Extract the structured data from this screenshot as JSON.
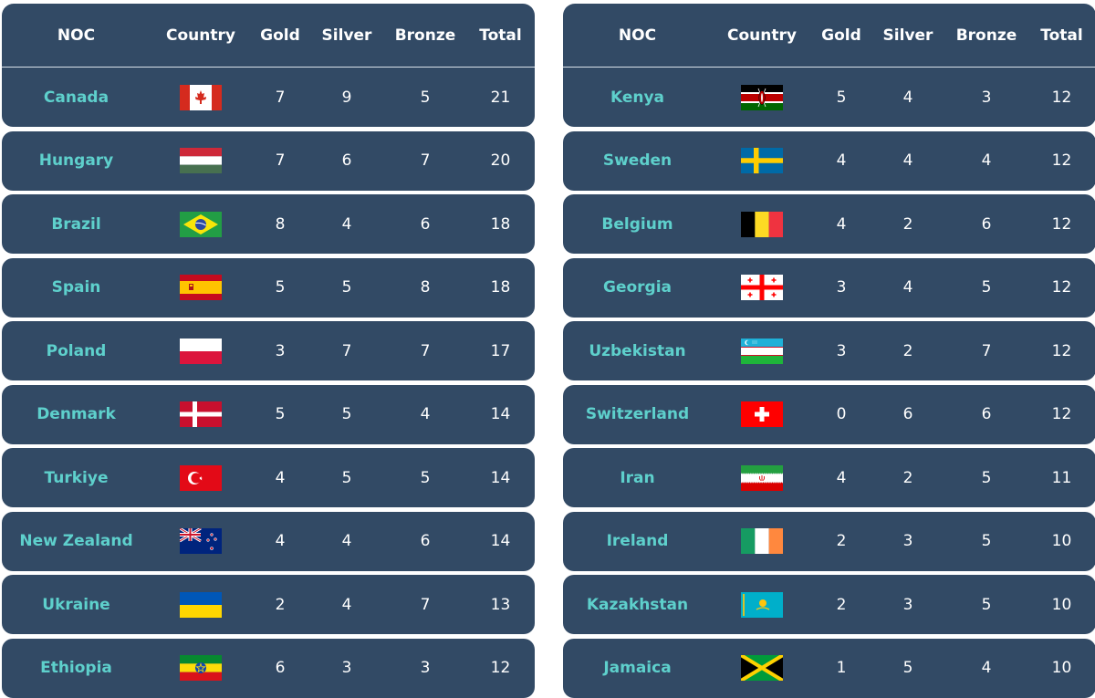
{
  "headers": {
    "noc": "NOC",
    "country": "Country",
    "gold": "Gold",
    "silver": "Silver",
    "bronze": "Bronze",
    "total": "Total"
  },
  "colors": {
    "row_bg": "#324a65",
    "noc_text": "#5ed0cc",
    "text": "#ffffff"
  },
  "left_table": [
    {
      "noc": "Canada",
      "flag": "canada-flag",
      "gold": "7",
      "silver": "9",
      "bronze": "5",
      "total": "21"
    },
    {
      "noc": "Hungary",
      "flag": "hungary-flag",
      "gold": "7",
      "silver": "6",
      "bronze": "7",
      "total": "20"
    },
    {
      "noc": "Brazil",
      "flag": "brazil-flag",
      "gold": "8",
      "silver": "4",
      "bronze": "6",
      "total": "18"
    },
    {
      "noc": "Spain",
      "flag": "spain-flag",
      "gold": "5",
      "silver": "5",
      "bronze": "8",
      "total": "18"
    },
    {
      "noc": "Poland",
      "flag": "poland-flag",
      "gold": "3",
      "silver": "7",
      "bronze": "7",
      "total": "17"
    },
    {
      "noc": "Denmark",
      "flag": "denmark-flag",
      "gold": "5",
      "silver": "5",
      "bronze": "4",
      "total": "14"
    },
    {
      "noc": "Turkiye",
      "flag": "turkiye-flag",
      "gold": "4",
      "silver": "5",
      "bronze": "5",
      "total": "14"
    },
    {
      "noc": "New Zealand",
      "flag": "new-zealand-flag",
      "gold": "4",
      "silver": "4",
      "bronze": "6",
      "total": "14"
    },
    {
      "noc": "Ukraine",
      "flag": "ukraine-flag",
      "gold": "2",
      "silver": "4",
      "bronze": "7",
      "total": "13"
    },
    {
      "noc": "Ethiopia",
      "flag": "ethiopia-flag",
      "gold": "6",
      "silver": "3",
      "bronze": "3",
      "total": "12"
    }
  ],
  "right_table": [
    {
      "noc": "Kenya",
      "flag": "kenya-flag",
      "gold": "5",
      "silver": "4",
      "bronze": "3",
      "total": "12"
    },
    {
      "noc": "Sweden",
      "flag": "sweden-flag",
      "gold": "4",
      "silver": "4",
      "bronze": "4",
      "total": "12"
    },
    {
      "noc": "Belgium",
      "flag": "belgium-flag",
      "gold": "4",
      "silver": "2",
      "bronze": "6",
      "total": "12"
    },
    {
      "noc": "Georgia",
      "flag": "georgia-flag",
      "gold": "3",
      "silver": "4",
      "bronze": "5",
      "total": "12"
    },
    {
      "noc": "Uzbekistan",
      "flag": "uzbekistan-flag",
      "gold": "3",
      "silver": "2",
      "bronze": "7",
      "total": "12"
    },
    {
      "noc": "Switzerland",
      "flag": "switzerland-flag",
      "gold": "0",
      "silver": "6",
      "bronze": "6",
      "total": "12"
    },
    {
      "noc": "Iran",
      "flag": "iran-flag",
      "gold": "4",
      "silver": "2",
      "bronze": "5",
      "total": "11"
    },
    {
      "noc": "Ireland",
      "flag": "ireland-flag",
      "gold": "2",
      "silver": "3",
      "bronze": "5",
      "total": "10"
    },
    {
      "noc": "Kazakhstan",
      "flag": "kazakhstan-flag",
      "gold": "2",
      "silver": "3",
      "bronze": "5",
      "total": "10"
    },
    {
      "noc": "Jamaica",
      "flag": "jamaica-flag",
      "gold": "1",
      "silver": "5",
      "bronze": "4",
      "total": "10"
    }
  ]
}
